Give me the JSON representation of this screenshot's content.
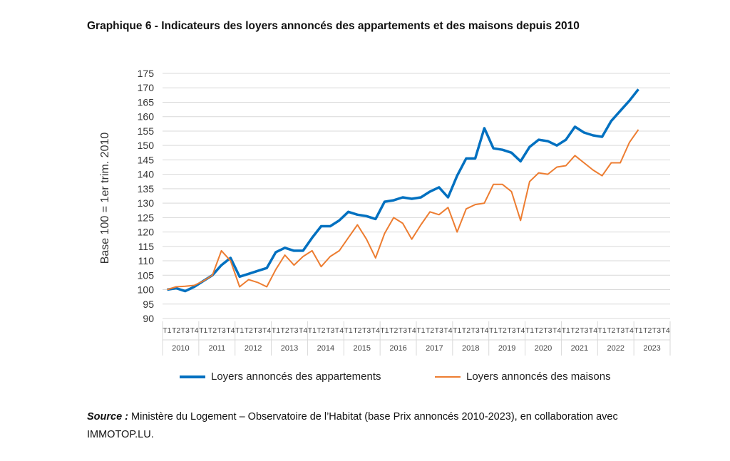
{
  "chart_data": {
    "type": "line",
    "title": "Graphique 6 - Indicateurs des loyers annoncés des appartements et des maisons depuis 2010",
    "ylabel": "Base 100 = 1er trim. 2010",
    "xlabel": "",
    "ylim": [
      90,
      175
    ],
    "yticks": [
      "90",
      "95",
      "100",
      "105",
      "110",
      "115",
      "120",
      "125",
      "130",
      "135",
      "140",
      "145",
      "150",
      "155",
      "160",
      "165",
      "170",
      "175"
    ],
    "quarters": [
      "T1",
      "T2",
      "T3",
      "T4"
    ],
    "years": [
      "2010",
      "2011",
      "2012",
      "2013",
      "2014",
      "2015",
      "2016",
      "2017",
      "2018",
      "2019",
      "2020",
      "2021",
      "2022",
      "2023"
    ],
    "grid": true,
    "legend_position": "bottom",
    "series": [
      {
        "name": "Loyers annoncés des appartements",
        "color": "#0070C0",
        "values": [
          100,
          100.5,
          99.5,
          101,
          103,
          105,
          108.5,
          111,
          104.5,
          105.5,
          106.5,
          107.5,
          113,
          114.5,
          113.5,
          113.5,
          118,
          122,
          122,
          124,
          127,
          126,
          125.5,
          124.5,
          130.5,
          131,
          132,
          131.5,
          132,
          134,
          135.5,
          132,
          139.5,
          145.5,
          145.5,
          156,
          149,
          148.5,
          147.5,
          144.5,
          149.5,
          152,
          151.5,
          150,
          152,
          156.5,
          154.5,
          153.5,
          153,
          158.5,
          162,
          165.5,
          169.5
        ]
      },
      {
        "name": "Loyers annoncés des maisons",
        "color": "#ED7D31",
        "values": [
          100,
          101,
          101.2,
          101.5,
          103,
          105,
          113.5,
          110,
          101,
          103.5,
          102.5,
          101,
          107,
          112,
          108.5,
          111.5,
          113.5,
          108,
          111.5,
          113.5,
          118,
          122.5,
          117.5,
          111,
          119.5,
          125,
          123,
          117.5,
          122.5,
          127,
          126,
          128.5,
          120,
          128,
          129.5,
          130,
          136.5,
          136.5,
          134,
          124,
          137.5,
          140.5,
          140,
          142.5,
          143,
          146.5,
          144,
          141.5,
          139.5,
          144,
          144,
          151,
          155.5
        ]
      }
    ]
  },
  "source": {
    "label": "Source :",
    "text": " Ministère du Logement – Observatoire de l’Habitat (base Prix annoncés 2010-2023), en collaboration avec IMMOTOP.LU."
  }
}
